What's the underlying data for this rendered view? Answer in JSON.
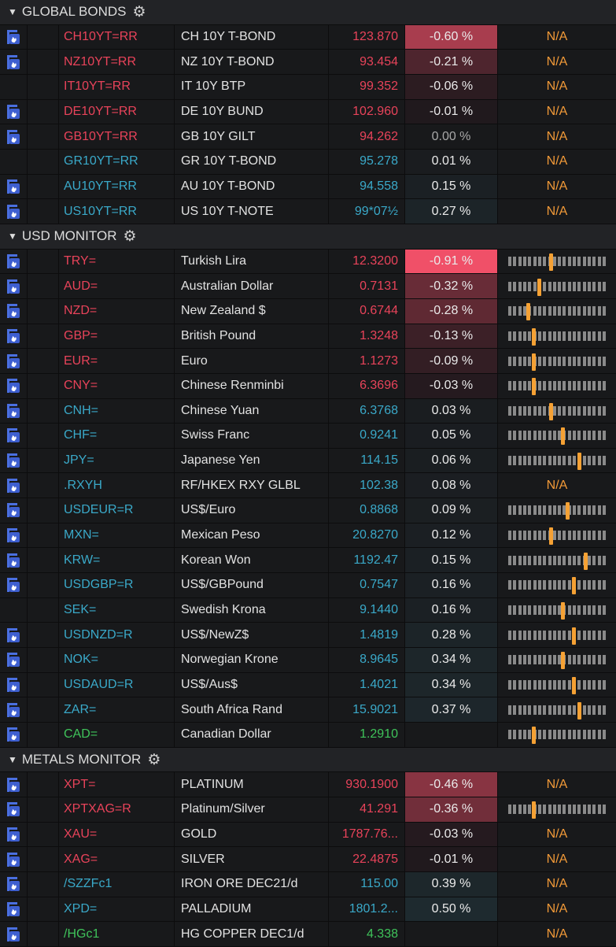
{
  "colors": {
    "negative": "#e8435a",
    "positive": "#3aa9c9",
    "unchanged": "#3fc35a",
    "na": "#f29a38",
    "marker": "#f5a134",
    "icon": "#4a6fe0"
  },
  "sections": [
    {
      "title": "GLOBAL BONDS",
      "icon": "gear-icon",
      "rows": [
        {
          "icon": true,
          "ric": "CH10YT=RR",
          "name": "CH 10Y T-BOND",
          "price": "123.870",
          "dir": "neg",
          "change": "-0.60 %",
          "chg": -0.6,
          "range": "N/A"
        },
        {
          "icon": true,
          "ric": "NZ10YT=RR",
          "name": "NZ 10Y T-BOND",
          "price": "93.454",
          "dir": "neg",
          "change": "-0.21 %",
          "chg": -0.21,
          "range": "N/A"
        },
        {
          "icon": false,
          "ric": "IT10YT=RR",
          "name": "IT 10Y BTP",
          "price": "99.352",
          "dir": "neg",
          "change": "-0.06 %",
          "chg": -0.06,
          "range": "N/A"
        },
        {
          "icon": true,
          "ric": "DE10YT=RR",
          "name": "DE 10Y BUND",
          "price": "102.960",
          "dir": "neg",
          "change": "-0.01 %",
          "chg": -0.01,
          "range": "N/A"
        },
        {
          "icon": true,
          "ric": "GB10YT=RR",
          "name": "GB 10Y GILT",
          "price": "94.262",
          "dir": "neg",
          "change": "0.00 %",
          "chg": 0,
          "range": "N/A"
        },
        {
          "icon": false,
          "ric": "GR10YT=RR",
          "name": "GR 10Y T-BOND",
          "price": "95.278",
          "dir": "pos",
          "change": "0.01 %",
          "chg": 0.01,
          "range": "N/A"
        },
        {
          "icon": true,
          "ric": "AU10YT=RR",
          "name": "AU 10Y T-BOND",
          "price": "94.558",
          "dir": "pos",
          "change": "0.15 %",
          "chg": 0.15,
          "range": "N/A"
        },
        {
          "icon": true,
          "ric": "US10YT=RR",
          "name": "US 10Y T-NOTE",
          "price": "99*07½",
          "dir": "pos",
          "change": "0.27 %",
          "chg": 0.27,
          "range": "N/A"
        }
      ]
    },
    {
      "title": "USD MONITOR",
      "icon": "gear-icon",
      "rows": [
        {
          "icon": true,
          "ric": "TRY=",
          "name": "Turkish Lira",
          "price": "12.3200",
          "dir": "neg",
          "change": "-0.91 %",
          "chg": -0.91,
          "range_pos": 0.44
        },
        {
          "icon": true,
          "ric": "AUD=",
          "name": "Australian Dollar",
          "price": "0.7131",
          "dir": "neg",
          "change": "-0.32 %",
          "chg": -0.32,
          "range_pos": 0.31
        },
        {
          "icon": true,
          "ric": "NZD=",
          "name": "New Zealand $",
          "price": "0.6744",
          "dir": "neg",
          "change": "-0.28 %",
          "chg": -0.28,
          "range_pos": 0.19
        },
        {
          "icon": true,
          "ric": "GBP=",
          "name": "British Pound",
          "price": "1.3248",
          "dir": "neg",
          "change": "-0.13 %",
          "chg": -0.13,
          "range_pos": 0.25
        },
        {
          "icon": true,
          "ric": "EUR=",
          "name": "Euro",
          "price": "1.1273",
          "dir": "neg",
          "change": "-0.09 %",
          "chg": -0.09,
          "range_pos": 0.25
        },
        {
          "icon": true,
          "ric": "CNY=",
          "name": "Chinese Renminbi",
          "price": "6.3696",
          "dir": "neg",
          "change": "-0.03 %",
          "chg": -0.03,
          "range_pos": 0.25
        },
        {
          "icon": true,
          "ric": "CNH=",
          "name": "Chinese Yuan",
          "price": "6.3768",
          "dir": "pos",
          "change": "0.03 %",
          "chg": 0.03,
          "range_pos": 0.44
        },
        {
          "icon": true,
          "ric": "CHF=",
          "name": "Swiss Franc",
          "price": "0.9241",
          "dir": "pos",
          "change": "0.05 %",
          "chg": 0.05,
          "range_pos": 0.56
        },
        {
          "icon": true,
          "ric": "JPY=",
          "name": "Japanese Yen",
          "price": "114.15",
          "dir": "pos",
          "change": "0.06 %",
          "chg": 0.06,
          "range_pos": 0.74
        },
        {
          "icon": true,
          "ric": ".RXYH",
          "name": "RF/HKEX RXY GLBL",
          "price": "102.38",
          "dir": "pos",
          "change": "0.08 %",
          "chg": 0.08,
          "range": "N/A"
        },
        {
          "icon": true,
          "ric": "USDEUR=R",
          "name": "US$/Euro",
          "price": "0.8868",
          "dir": "pos",
          "change": "0.09 %",
          "chg": 0.09,
          "range_pos": 0.61
        },
        {
          "icon": true,
          "ric": "MXN=",
          "name": "Mexican Peso",
          "price": "20.8270",
          "dir": "pos",
          "change": "0.12 %",
          "chg": 0.12,
          "range_pos": 0.44
        },
        {
          "icon": true,
          "ric": "KRW=",
          "name": "Korean Won",
          "price": "1192.47",
          "dir": "pos",
          "change": "0.15 %",
          "chg": 0.15,
          "range_pos": 0.81
        },
        {
          "icon": true,
          "ric": "USDGBP=R",
          "name": "US$/GBPound",
          "price": "0.7547",
          "dir": "pos",
          "change": "0.16 %",
          "chg": 0.16,
          "range_pos": 0.68
        },
        {
          "icon": false,
          "ric": "SEK=",
          "name": "Swedish Krona",
          "price": "9.1440",
          "dir": "pos",
          "change": "0.16 %",
          "chg": 0.16,
          "range_pos": 0.56
        },
        {
          "icon": true,
          "ric": "USDNZD=R",
          "name": "US$/NewZ$",
          "price": "1.4819",
          "dir": "pos",
          "change": "0.28 %",
          "chg": 0.28,
          "range_pos": 0.68
        },
        {
          "icon": true,
          "ric": "NOK=",
          "name": "Norwegian Krone",
          "price": "8.9645",
          "dir": "pos",
          "change": "0.34 %",
          "chg": 0.34,
          "range_pos": 0.56
        },
        {
          "icon": true,
          "ric": "USDAUD=R",
          "name": "US$/Aus$",
          "price": "1.4021",
          "dir": "pos",
          "change": "0.34 %",
          "chg": 0.34,
          "range_pos": 0.68
        },
        {
          "icon": true,
          "ric": "ZAR=",
          "name": "South Africa Rand",
          "price": "15.9021",
          "dir": "pos",
          "change": "0.37 %",
          "chg": 0.37,
          "range_pos": 0.74
        },
        {
          "icon": true,
          "ric": "CAD=",
          "name": "Canadian Dollar",
          "price": "1.2910",
          "dir": "flat",
          "change": "",
          "chg": null,
          "range_pos": 0.25
        }
      ]
    },
    {
      "title": "METALS MONITOR",
      "icon": "gear-icon",
      "rows": [
        {
          "icon": true,
          "ric": "XPT=",
          "name": "PLATINUM",
          "price": "930.1900",
          "dir": "neg",
          "change": "-0.46 %",
          "chg": -0.46,
          "range": "N/A"
        },
        {
          "icon": true,
          "ric": "XPTXAG=R",
          "name": "Platinum/Silver",
          "price": "41.291",
          "dir": "neg",
          "change": "-0.36 %",
          "chg": -0.36,
          "range_pos": 0.25
        },
        {
          "icon": true,
          "ric": "XAU=",
          "name": "GOLD",
          "price": "1787.76...",
          "dir": "neg",
          "change": "-0.03 %",
          "chg": -0.03,
          "range": "N/A"
        },
        {
          "icon": true,
          "ric": "XAG=",
          "name": "SILVER",
          "price": "22.4875",
          "dir": "neg",
          "change": "-0.01 %",
          "chg": -0.01,
          "range": "N/A"
        },
        {
          "icon": true,
          "ric": "/SZZFc1",
          "name": "IRON ORE DEC21/d",
          "price": "115.00",
          "dir": "pos",
          "change": "0.39 %",
          "chg": 0.39,
          "range": "N/A"
        },
        {
          "icon": true,
          "ric": "XPD=",
          "name": "PALLADIUM",
          "price": "1801.2...",
          "dir": "pos",
          "change": "0.50 %",
          "chg": 0.5,
          "range": "N/A"
        },
        {
          "icon": true,
          "ric": "/HGc1",
          "name": "HG COPPER DEC1/d",
          "price": "4.338",
          "dir": "flat",
          "change": "",
          "chg": null,
          "range": "N/A"
        }
      ]
    }
  ]
}
